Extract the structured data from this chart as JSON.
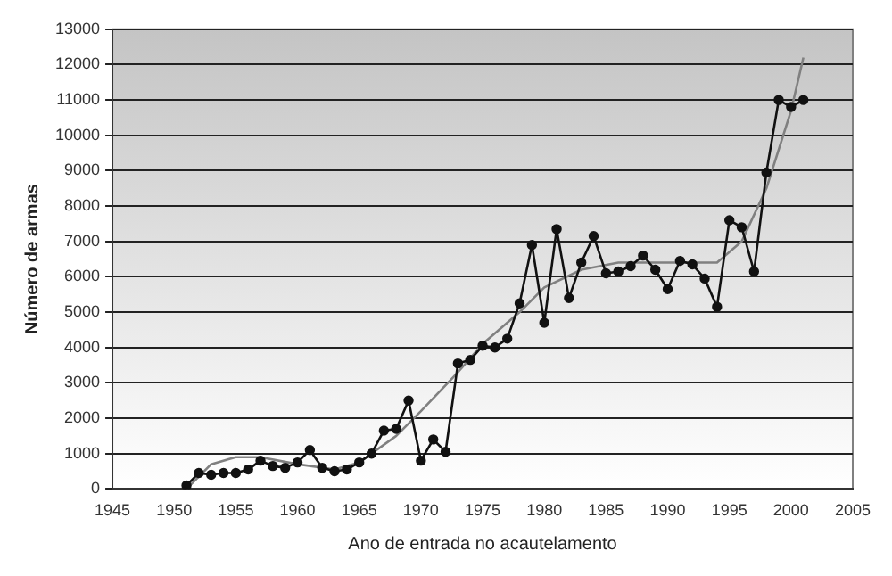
{
  "chart_data": {
    "type": "line",
    "xlabel": "Ano de entrada no acautelamento",
    "ylabel": "Número de armas",
    "x": [
      1951,
      1952,
      1953,
      1954,
      1955,
      1956,
      1957,
      1958,
      1959,
      1960,
      1961,
      1962,
      1963,
      1964,
      1965,
      1966,
      1967,
      1968,
      1969,
      1970,
      1971,
      1972,
      1973,
      1974,
      1975,
      1976,
      1977,
      1978,
      1979,
      1980,
      1981,
      1982,
      1983,
      1984,
      1985,
      1986,
      1987,
      1988,
      1989,
      1990,
      1991,
      1992,
      1993,
      1994,
      1995,
      1996,
      1997,
      1998,
      1999,
      2000,
      2001
    ],
    "series": [
      {
        "color": "#111111",
        "marker": "circle",
        "values": [
          100,
          450,
          400,
          450,
          450,
          550,
          800,
          650,
          600,
          750,
          1100,
          600,
          500,
          550,
          750,
          1000,
          1650,
          1700,
          2500,
          800,
          1400,
          1050,
          3550,
          3650,
          4050,
          4000,
          4250,
          5250,
          6900,
          4700,
          7350,
          5400,
          6400,
          7150,
          6100,
          6150,
          6300,
          6600,
          6200,
          5650,
          6450,
          6350,
          5950,
          5150,
          7600,
          7400,
          6150,
          8950,
          11000,
          10800,
          11000
        ]
      },
      {
        "type": "line",
        "color": "#808080",
        "marker": "none",
        "x": [
          1951,
          1953,
          1955,
          1957,
          1960,
          1963,
          1965,
          1968,
          1970,
          1973,
          1975,
          1978,
          1980,
          1983,
          1986,
          1990,
          1994,
          1996,
          1998,
          2000,
          2001
        ],
        "values": [
          0,
          700,
          900,
          900,
          700,
          550,
          750,
          1500,
          2200,
          3300,
          4100,
          5000,
          5700,
          6200,
          6400,
          6400,
          6400,
          7000,
          8500,
          10700,
          12200
        ]
      }
    ],
    "xlim": [
      1945,
      2005
    ],
    "xticks": [
      1945,
      1950,
      1955,
      1960,
      1965,
      1970,
      1975,
      1980,
      1985,
      1990,
      1995,
      2000,
      2005
    ],
    "ylim": [
      0,
      13000
    ],
    "yticks": [
      0,
      1000,
      2000,
      3000,
      4000,
      5000,
      6000,
      7000,
      8000,
      9000,
      10000,
      11000,
      12000,
      13000
    ],
    "grid": "y",
    "legend": false
  }
}
